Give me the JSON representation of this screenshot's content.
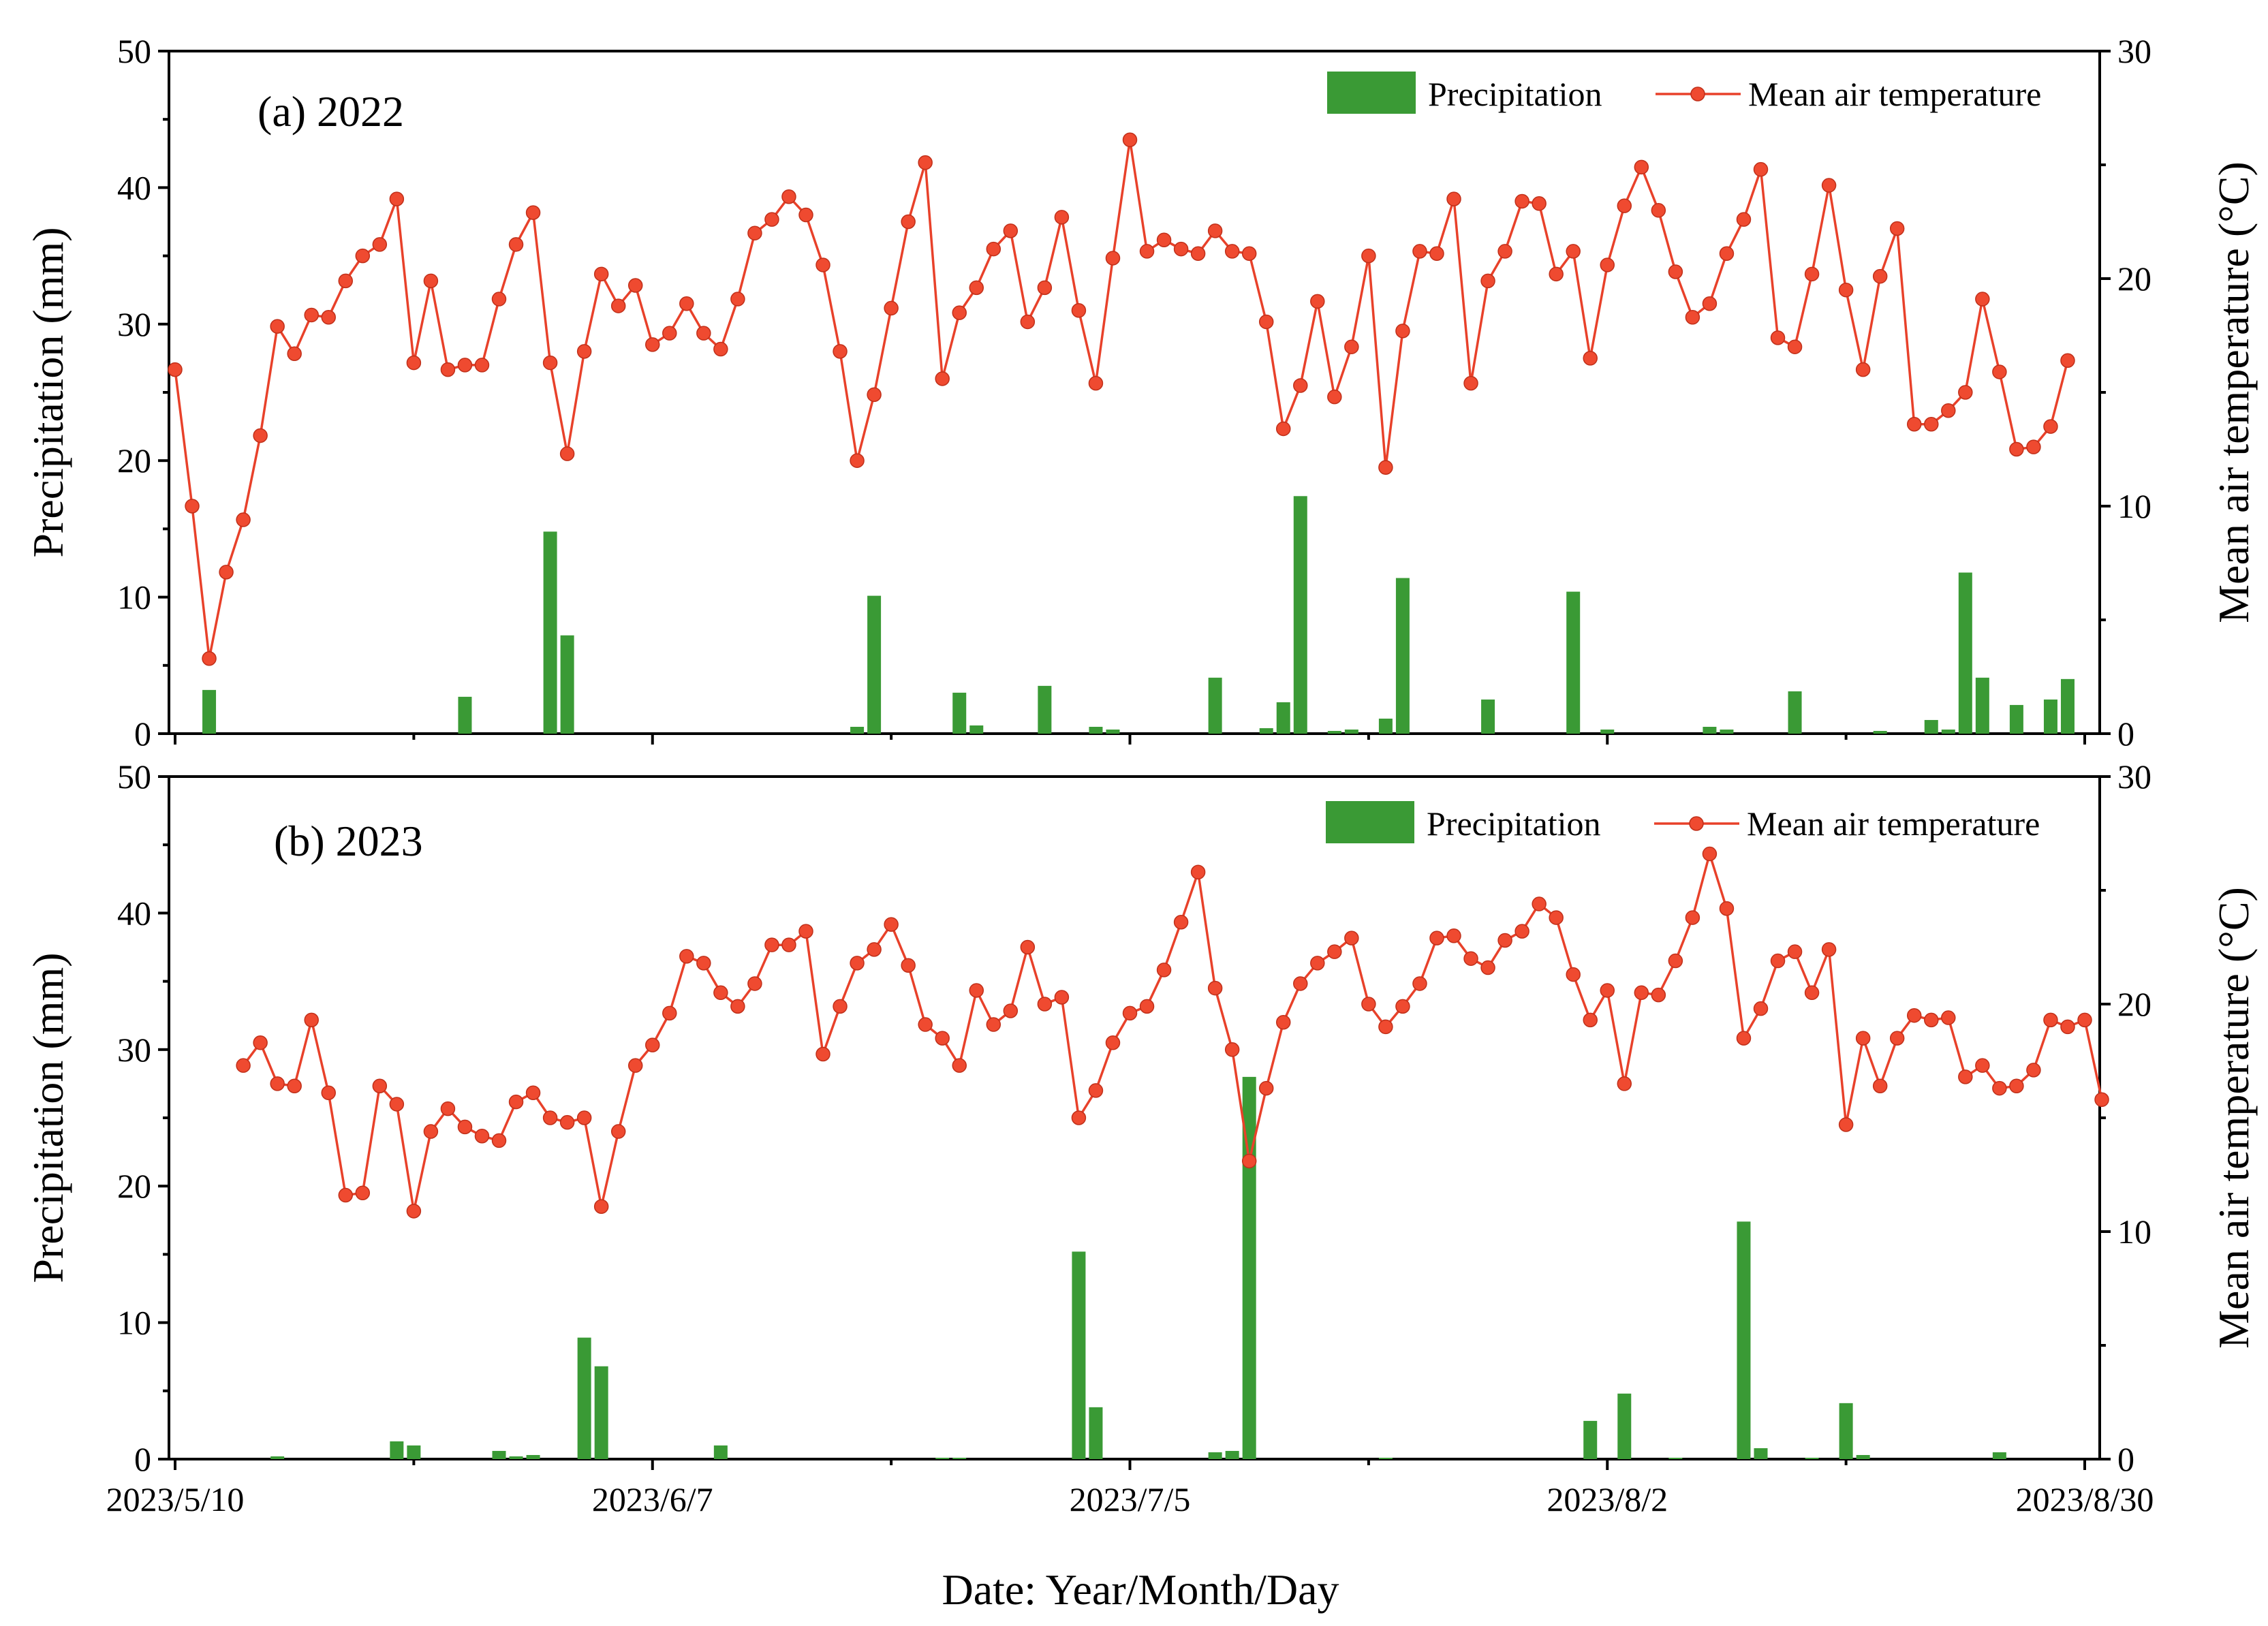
{
  "colors": {
    "precipitation": "#3a9a35",
    "temperature": "#ef4a30",
    "axis": "#000000"
  },
  "x_axis": {
    "title": "Date: Year/Month/Day",
    "tick_labels": [
      "2023/5/10",
      "2023/6/7",
      "2023/7/5",
      "2023/8/2",
      "2023/8/30"
    ],
    "tick_days": [
      0,
      28,
      56,
      84,
      112
    ],
    "range_days": [
      0,
      112
    ]
  },
  "chart_data": [
    {
      "type": "bar+line",
      "panel_label": "(a) 2022",
      "xlabel": "Date: Year/Month/Day",
      "ylabel": "Precipitation (mm)",
      "y2label": "Mean air temperature (°C)",
      "ylim": [
        0,
        50
      ],
      "y2lim": [
        0,
        30
      ],
      "yticks": [
        "0",
        "10",
        "20",
        "30",
        "40",
        "50"
      ],
      "y2ticks": [
        "0",
        "10",
        "20",
        "30"
      ],
      "legend": [
        "Precipitation",
        "Mean air temperature"
      ],
      "legend_position": "top-right",
      "series": [
        {
          "name": "Precipitation",
          "kind": "bar",
          "points": [
            [
              2,
              3.2
            ],
            [
              17,
              2.7
            ],
            [
              22,
              14.8
            ],
            [
              23,
              7.2
            ],
            [
              40,
              0.5
            ],
            [
              41,
              10.1
            ],
            [
              46,
              3.0
            ],
            [
              47,
              0.6
            ],
            [
              51,
              3.5
            ],
            [
              54,
              0.5
            ],
            [
              55,
              0.3
            ],
            [
              61,
              4.1
            ],
            [
              64,
              0.4
            ],
            [
              65,
              2.3
            ],
            [
              66,
              17.4
            ],
            [
              68,
              0.2
            ],
            [
              69,
              0.3
            ],
            [
              71,
              1.1
            ],
            [
              72,
              11.4
            ],
            [
              77,
              2.5
            ],
            [
              82,
              10.4
            ],
            [
              84,
              0.3
            ],
            [
              90,
              0.5
            ],
            [
              91,
              0.3
            ],
            [
              95,
              3.1
            ],
            [
              100,
              0.2
            ],
            [
              103,
              1.0
            ],
            [
              104,
              0.3
            ],
            [
              105,
              11.8
            ],
            [
              106,
              4.1
            ],
            [
              108,
              2.1
            ],
            [
              110,
              2.5
            ],
            [
              111,
              4.0
            ]
          ]
        },
        {
          "name": "Mean air temperature",
          "kind": "line",
          "values": [
            16.0,
            10.0,
            3.3,
            7.1,
            9.4,
            13.1,
            17.9,
            16.7,
            18.4,
            18.3,
            19.9,
            21.0,
            21.5,
            23.5,
            16.3,
            19.9,
            16.0,
            16.2,
            16.2,
            19.1,
            21.5,
            22.9,
            16.3,
            12.3,
            16.8,
            20.2,
            18.8,
            19.7,
            17.1,
            17.6,
            18.9,
            17.6,
            16.9,
            19.1,
            22.0,
            22.6,
            23.6,
            22.8,
            20.6,
            16.8,
            12.0,
            14.9,
            18.7,
            22.5,
            25.1,
            15.6,
            18.5,
            19.6,
            21.3,
            22.1,
            18.1,
            19.6,
            22.7,
            18.6,
            15.4,
            20.9,
            26.1,
            21.2,
            21.7,
            21.3,
            21.1,
            22.1,
            21.2,
            21.1,
            18.1,
            13.4,
            15.3,
            19.0,
            14.8,
            17.0,
            21.0,
            11.7,
            17.7,
            21.2,
            21.1,
            23.5,
            15.4,
            19.9,
            21.2,
            23.4,
            23.3,
            20.2,
            21.2,
            16.5,
            20.6,
            23.2,
            24.9,
            23.0,
            20.3,
            18.3,
            18.9,
            21.1,
            22.6,
            24.8,
            17.4,
            17.0,
            20.2,
            24.1,
            19.5,
            16.0,
            20.1,
            22.2,
            13.6,
            13.6,
            14.2,
            15.0,
            19.1,
            15.9,
            12.5,
            12.6,
            13.5,
            16.4
          ]
        }
      ]
    },
    {
      "type": "bar+line",
      "panel_label": "(b) 2023",
      "xlabel": "Date: Year/Month/Day",
      "ylabel": "Precipitation (mm)",
      "y2label": "Mean air temperature (°C)",
      "ylim": [
        0,
        50
      ],
      "y2lim": [
        0,
        30
      ],
      "yticks": [
        "0",
        "10",
        "20",
        "30",
        "40",
        "50"
      ],
      "y2ticks": [
        "0",
        "10",
        "20",
        "30"
      ],
      "legend": [
        "Precipitation",
        "Mean air temperature"
      ],
      "legend_position": "top-right",
      "series": [
        {
          "name": "Precipitation",
          "kind": "bar",
          "points": [
            [
              6,
              0.2
            ],
            [
              13,
              1.3
            ],
            [
              14,
              1.0
            ],
            [
              19,
              0.6
            ],
            [
              20,
              0.2
            ],
            [
              21,
              0.3
            ],
            [
              24,
              8.9
            ],
            [
              25,
              6.8
            ],
            [
              32,
              1.0
            ],
            [
              45,
              0.1
            ],
            [
              46,
              0.1
            ],
            [
              53,
              15.2
            ],
            [
              54,
              3.8
            ],
            [
              61,
              0.5
            ],
            [
              62,
              0.6
            ],
            [
              63,
              28.0
            ],
            [
              71,
              0.1
            ],
            [
              83,
              2.8
            ],
            [
              85,
              4.8
            ],
            [
              88,
              0.1
            ],
            [
              92,
              17.4
            ],
            [
              93,
              0.8
            ],
            [
              96,
              0.1
            ],
            [
              98,
              4.1
            ],
            [
              99,
              0.3
            ],
            [
              107,
              0.5
            ]
          ]
        },
        {
          "name": "Mean air temperature",
          "kind": "line",
          "start_day": 4,
          "values": [
            17.3,
            18.3,
            16.5,
            16.4,
            19.3,
            16.1,
            11.6,
            11.7,
            16.4,
            15.6,
            10.9,
            14.4,
            15.4,
            14.6,
            14.2,
            14.0,
            15.7,
            16.1,
            15.0,
            14.8,
            15.0,
            11.1,
            14.4,
            17.3,
            18.2,
            19.6,
            22.1,
            21.8,
            20.5,
            19.9,
            20.9,
            22.6,
            22.6,
            23.2,
            17.8,
            19.9,
            21.8,
            22.4,
            23.5,
            21.7,
            19.1,
            18.5,
            17.3,
            20.6,
            19.1,
            19.7,
            22.5,
            20.0,
            20.3,
            15.0,
            16.2,
            18.3,
            19.6,
            19.9,
            21.5,
            23.6,
            25.8,
            20.7,
            18.0,
            13.1,
            16.3,
            19.2,
            20.9,
            21.8,
            22.3,
            22.9,
            20.0,
            19.0,
            19.9,
            20.9,
            22.9,
            23.0,
            22.0,
            21.6,
            22.8,
            23.2,
            24.4,
            23.8,
            21.3,
            19.3,
            20.6,
            16.5,
            20.5,
            20.4,
            21.9,
            23.8,
            26.6,
            24.2,
            18.5,
            19.8,
            21.9,
            22.3,
            20.5,
            22.4,
            14.7,
            18.5,
            16.4,
            18.5,
            19.5,
            19.3,
            19.4,
            16.8,
            17.3,
            16.3,
            16.4,
            17.1,
            19.3,
            19.0,
            19.3,
            15.8
          ]
        }
      ]
    }
  ]
}
